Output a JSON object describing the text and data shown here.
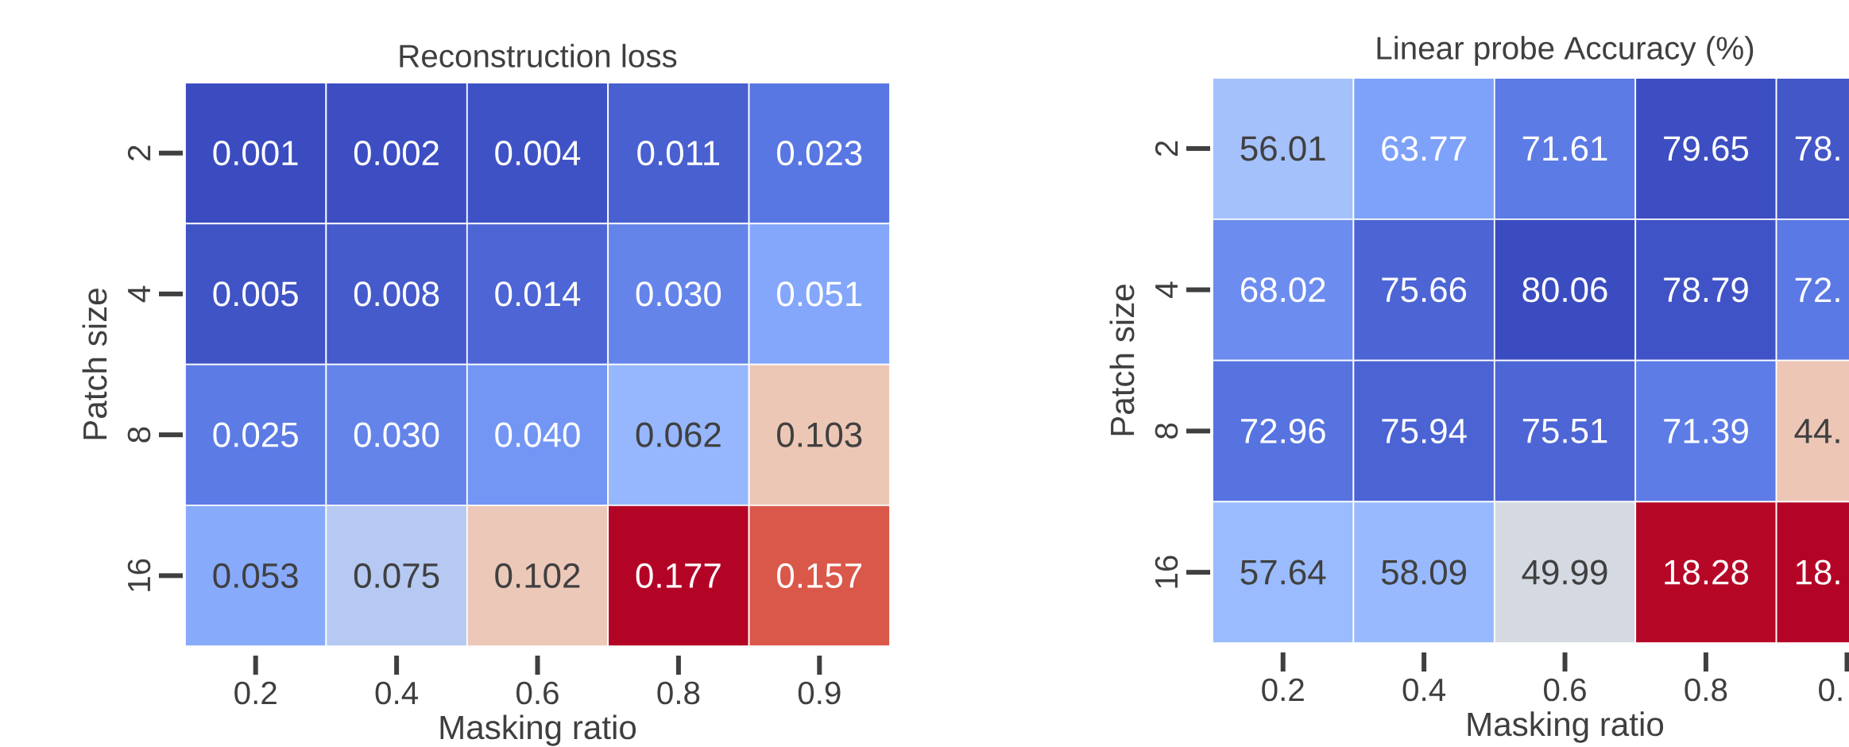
{
  "chart_data": [
    {
      "type": "heatmap",
      "title": "Reconstruction loss",
      "xlabel": "Masking ratio",
      "ylabel": "Patch size",
      "categories": [
        "0.2",
        "0.4",
        "0.6",
        "0.8",
        "0.9"
      ],
      "y_categories": [
        "2",
        "4",
        "8",
        "16"
      ],
      "cells": [
        [
          0.001,
          0.002,
          0.004,
          0.011,
          0.023
        ],
        [
          0.005,
          0.008,
          0.014,
          0.03,
          0.051
        ],
        [
          0.025,
          0.03,
          0.04,
          0.062,
          0.103
        ],
        [
          0.053,
          0.075,
          0.102,
          0.177,
          0.157
        ]
      ],
      "cell_labels": [
        [
          "0.001",
          "0.002",
          "0.004",
          "0.011",
          "0.023"
        ],
        [
          "0.005",
          "0.008",
          "0.014",
          "0.030",
          "0.051"
        ],
        [
          "0.025",
          "0.030",
          "0.040",
          "0.062",
          "0.103"
        ],
        [
          "0.053",
          "0.075",
          "0.102",
          "0.177",
          "0.157"
        ]
      ]
    },
    {
      "type": "heatmap",
      "title": "Linear probe Accuracy (%)",
      "xlabel": "Masking ratio",
      "ylabel": "Patch size",
      "categories": [
        "0.2",
        "0.4",
        "0.6",
        "0.8",
        "0."
      ],
      "y_categories": [
        "2",
        "4",
        "8",
        "16"
      ],
      "cells": [
        [
          56.01,
          63.77,
          71.61,
          79.65,
          78
        ],
        [
          68.02,
          75.66,
          80.06,
          78.79,
          72
        ],
        [
          72.96,
          75.94,
          75.51,
          71.39,
          44
        ],
        [
          57.64,
          58.09,
          49.99,
          18.28,
          18
        ]
      ],
      "cell_labels": [
        [
          "56.01",
          "63.77",
          "71.61",
          "79.65",
          "78."
        ],
        [
          "68.02",
          "75.66",
          "80.06",
          "78.79",
          "72."
        ],
        [
          "72.96",
          "75.94",
          "75.51",
          "71.39",
          "44."
        ],
        [
          "57.64",
          "58.09",
          "49.99",
          "18.28",
          "18."
        ]
      ]
    }
  ]
}
